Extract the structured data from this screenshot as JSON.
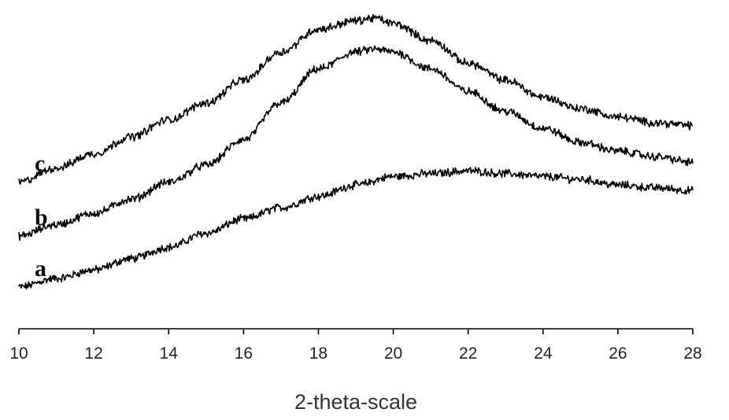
{
  "chart_data": {
    "type": "line",
    "title": "",
    "xlabel": "2-theta-scale",
    "ylabel": "",
    "xlim": [
      10,
      28
    ],
    "xticks": [
      "10",
      "12",
      "14",
      "16",
      "18",
      "20",
      "22",
      "24",
      "26",
      "28"
    ],
    "y_axis_shown": false,
    "ylim": [
      0,
      100
    ],
    "grid": false,
    "legend": "none",
    "noise_amplitude": 1.2,
    "series": [
      {
        "name": "a",
        "x": [
          10,
          11,
          12,
          13,
          14,
          15,
          16,
          17,
          18,
          19,
          20,
          21,
          22,
          23,
          24,
          25,
          26,
          27,
          28
        ],
        "values": [
          7,
          10,
          13,
          17,
          21,
          26,
          31,
          35,
          39,
          43,
          46,
          47,
          48,
          47,
          46,
          45,
          43,
          42,
          41
        ]
      },
      {
        "name": "b",
        "x": [
          10,
          11,
          12,
          13,
          14,
          15,
          16,
          17,
          18,
          19,
          19.5,
          20,
          21,
          22,
          23,
          24,
          25,
          26,
          27,
          28
        ],
        "values": [
          25,
          29,
          33,
          38,
          44,
          50,
          59,
          72,
          84,
          90,
          91,
          90,
          84,
          76,
          69,
          63,
          58,
          55,
          53,
          51
        ]
      },
      {
        "name": "c",
        "x": [
          10,
          11,
          12,
          13,
          14,
          15,
          16,
          17,
          18,
          19,
          19.5,
          20,
          21,
          22,
          23,
          24,
          25,
          26,
          27,
          28
        ],
        "values": [
          44,
          49,
          54,
          60,
          66,
          72,
          80,
          90,
          98,
          101,
          102,
          100,
          94,
          86,
          80,
          74,
          70,
          67,
          65,
          64
        ]
      }
    ]
  }
}
